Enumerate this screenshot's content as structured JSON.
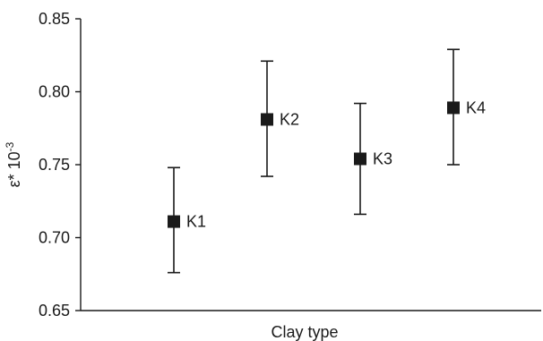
{
  "chart_data": {
    "type": "scatter",
    "xlabel": "Clay type",
    "ylabel": "ε* 10",
    "ylabel_exponent": "-3",
    "ylim": [
      0.65,
      0.85
    ],
    "yticks": [
      "0.65",
      "0.70",
      "0.75",
      "0.80",
      "0.85"
    ],
    "ytick_values": [
      0.65,
      0.7,
      0.75,
      0.8,
      0.85
    ],
    "grid": false,
    "marker": "square",
    "marker_color": "#1a1a1a",
    "points": [
      {
        "label": "K1",
        "y": 0.711,
        "y_low": 0.676,
        "y_high": 0.748
      },
      {
        "label": "K2",
        "y": 0.781,
        "y_low": 0.742,
        "y_high": 0.821
      },
      {
        "label": "K3",
        "y": 0.754,
        "y_low": 0.716,
        "y_high": 0.792
      },
      {
        "label": "K4",
        "y": 0.789,
        "y_low": 0.75,
        "y_high": 0.829
      }
    ]
  }
}
